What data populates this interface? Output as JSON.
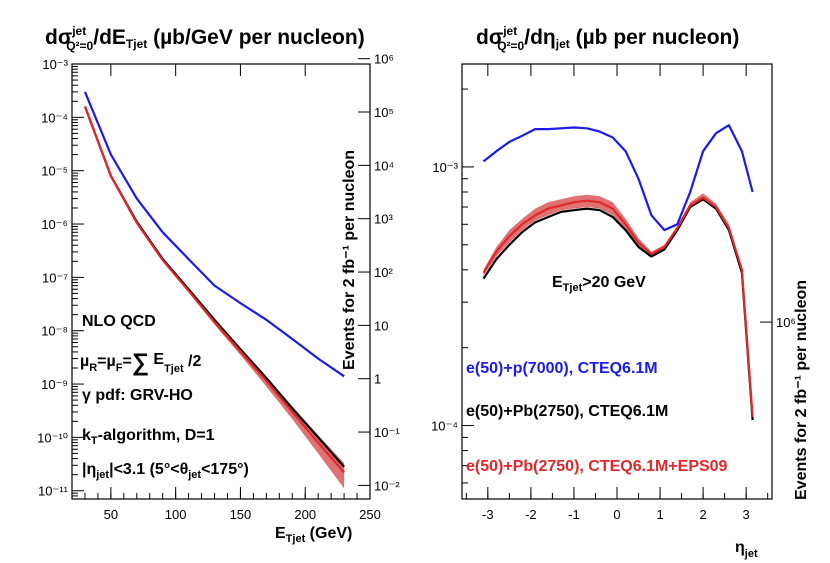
{
  "colors": {
    "blue": "#1a1aee",
    "black": "#000000",
    "red": "#e0282a",
    "band": "#d9585a"
  },
  "chart_data": [
    {
      "type": "line",
      "title_main": "dσ",
      "title_sup": "jet",
      "title_sub": "Q²=0",
      "title_mid": "/dE",
      "title_sub2": "Tjet",
      "title_tail": " (µb/GeV per nucleon)",
      "xlabel_main": "E",
      "xlabel_sub": "Tjet",
      "xlabel_tail": " (GeV)",
      "right_axis_label": "Events for 2 fb⁻¹ per nucleon",
      "xlim": [
        20,
        250
      ],
      "ylim": [
        7e-12,
        0.001
      ],
      "y_scale": "log",
      "x_ticks": [
        "50",
        "100",
        "150",
        "200",
        "250"
      ],
      "y_ticks": [
        "10⁻¹¹",
        "10⁻¹⁰",
        "10⁻⁹",
        "10⁻⁸",
        "10⁻⁷",
        "10⁻⁶",
        "10⁻⁵",
        "10⁻⁴",
        "10⁻³"
      ],
      "y2_ticks": [
        "10⁻²",
        "10⁻¹",
        "1",
        "10",
        "10²",
        "10³",
        "10⁴",
        "10⁵",
        "10⁶"
      ],
      "annotations": {
        "nlo": "NLO QCD",
        "mu": "µ",
        "mu_r": "R",
        "eq1": "=µ",
        "mu_f": "F",
        "eq2": "=",
        "sum": "∑",
        "e": " E",
        "e_sub": "Tjet",
        "div": " /2",
        "pdf": "γ pdf: GRV-HO",
        "kt_k": "k",
        "kt_sub": "T",
        "kt_rest": "-algorithm, D=1",
        "eta_a": "|η",
        "eta_sub": "jet",
        "eta_b": "|<3.1 (5°<θ",
        "theta_sub": "jet",
        "eta_c": "<175°)"
      },
      "series": [
        {
          "name": "e(50)+p(7000), CTEQ6.1M",
          "color": "blue",
          "x": [
            30,
            50,
            70,
            90,
            110,
            130,
            150,
            170,
            190,
            210,
            230
          ],
          "y": [
            0.0003,
            2e-05,
            3e-06,
            7e-07,
            2.2e-07,
            7e-08,
            3.3e-08,
            1.6e-08,
            7e-09,
            3e-09,
            1.4e-09
          ]
        },
        {
          "name": "e(50)+Pb(2750), CTEQ6.1M",
          "color": "black",
          "x": [
            30,
            50,
            70,
            90,
            110,
            130,
            150,
            170,
            190,
            210,
            230
          ],
          "y": [
            0.00016,
            8e-06,
            1.1e-06,
            2.2e-07,
            6e-08,
            1.6e-08,
            4.5e-09,
            1.3e-09,
            3.5e-10,
            1e-10,
            2.8e-11
          ]
        },
        {
          "name": "e(50)+Pb(2750), CTEQ6.1M+EPS09",
          "color": "red",
          "band": true,
          "x": [
            30,
            50,
            70,
            90,
            110,
            130,
            150,
            170,
            190,
            210,
            230
          ],
          "y": [
            0.00016,
            7.9e-06,
            1.05e-06,
            2.1e-07,
            5.6e-08,
            1.45e-08,
            4.1e-09,
            1.15e-09,
            3e-10,
            8e-11,
            2.2e-11
          ],
          "y_low": [
            0.000155,
            7.5e-06,
            1e-06,
            2e-07,
            5.2e-08,
            1.3e-08,
            3.5e-09,
            9e-10,
            2.2e-10,
            5e-11,
            1.1e-11
          ],
          "y_high": [
            0.000165,
            8.2e-06,
            1.12e-06,
            2.25e-07,
            6.2e-08,
            1.65e-08,
            4.8e-09,
            1.4e-09,
            3.8e-10,
            1.1e-10,
            3.3e-11
          ]
        }
      ]
    },
    {
      "type": "line",
      "title_main": "dσ",
      "title_sup": "jet",
      "title_sub": "Q²=0",
      "title_mid": "/dη",
      "title_sub2": "jet",
      "title_tail": " (µb per nucleon)",
      "xlabel_main": "η",
      "xlabel_sub": "jet",
      "right_axis_label": "Events for 2 fb⁻¹ per nucleon",
      "xlim": [
        -3.6,
        3.6
      ],
      "ylim": [
        5.2e-05,
        0.0025
      ],
      "y_scale": "log",
      "x_ticks": [
        "-3",
        "-2",
        "-1",
        "0",
        "1",
        "2",
        "3"
      ],
      "y_ticks": [
        "10⁻⁴",
        "10⁻³"
      ],
      "y2_ticks": [
        "10⁶"
      ],
      "cut_label_main": "E",
      "cut_label_sub": "Tjet",
      "cut_label_tail": ">20 GeV",
      "series": [
        {
          "name": "e(50)+p(7000), CTEQ6.1M",
          "color": "blue",
          "x": [
            -3.1,
            -2.8,
            -2.5,
            -2.2,
            -1.9,
            -1.6,
            -1.3,
            -1.0,
            -0.7,
            -0.4,
            -0.1,
            0.2,
            0.5,
            0.8,
            1.1,
            1.4,
            1.7,
            2.0,
            2.3,
            2.6,
            2.9,
            3.15
          ],
          "y": [
            0.00105,
            0.00115,
            0.00125,
            0.00132,
            0.0014,
            0.0014,
            0.00141,
            0.00142,
            0.00141,
            0.00137,
            0.0013,
            0.00115,
            0.0009,
            0.00065,
            0.00057,
            0.0006,
            0.0008,
            0.00115,
            0.00135,
            0.00145,
            0.00115,
            0.0008
          ]
        },
        {
          "name": "e(50)+Pb(2750), CTEQ6.1M",
          "color": "black",
          "x": [
            -3.1,
            -2.8,
            -2.5,
            -2.2,
            -1.9,
            -1.6,
            -1.3,
            -1.0,
            -0.7,
            -0.4,
            -0.1,
            0.2,
            0.5,
            0.8,
            1.1,
            1.4,
            1.7,
            2.0,
            2.3,
            2.6,
            2.9,
            3.15
          ],
          "y": [
            0.00037,
            0.00044,
            0.0005,
            0.00056,
            0.00061,
            0.00064,
            0.00067,
            0.00068,
            0.00069,
            0.00068,
            0.00064,
            0.00057,
            0.00049,
            0.00045,
            0.00048,
            0.00057,
            0.0007,
            0.00075,
            0.00069,
            0.00057,
            0.00039,
            0.000105
          ]
        },
        {
          "name": "e(50)+Pb(2750), CTEQ6.1M+EPS09",
          "color": "red",
          "band": true,
          "x": [
            -3.1,
            -2.8,
            -2.5,
            -2.2,
            -1.9,
            -1.6,
            -1.3,
            -1.0,
            -0.7,
            -0.4,
            -0.1,
            0.2,
            0.5,
            0.8,
            1.1,
            1.4,
            1.7,
            2.0,
            2.3,
            2.6,
            2.9,
            3.15
          ],
          "y": [
            0.00039,
            0.00047,
            0.00054,
            0.0006,
            0.00065,
            0.00069,
            0.00071,
            0.00073,
            0.00074,
            0.00073,
            0.00069,
            0.0006,
            0.00051,
            0.00046,
            0.00049,
            0.00058,
            0.00071,
            0.00076,
            0.0007,
            0.00058,
            0.0004,
            0.000108
          ],
          "y_low": [
            0.00038,
            0.00045,
            0.00051,
            0.00057,
            0.00062,
            0.00065,
            0.00068,
            0.00069,
            0.0007,
            0.00069,
            0.00065,
            0.000575,
            0.000495,
            0.000455,
            0.000485,
            0.000575,
            0.0007,
            0.00074,
            0.00069,
            0.00057,
            0.00039,
            0.000105
          ],
          "y_high": [
            0.0004,
            0.00049,
            0.00057,
            0.00063,
            0.00069,
            0.00073,
            0.00075,
            0.00077,
            0.00078,
            0.00077,
            0.00073,
            0.00063,
            0.00053,
            0.00047,
            0.0005,
            0.00059,
            0.00073,
            0.00079,
            0.00072,
            0.0006,
            0.00041,
            0.00011
          ]
        }
      ],
      "legend": [
        {
          "label": "e(50)+p(7000), CTEQ6.1M",
          "color": "blue"
        },
        {
          "label": "e(50)+Pb(2750), CTEQ6.1M",
          "color": "black"
        },
        {
          "label": "e(50)+Pb(2750), CTEQ6.1M+EPS09",
          "color": "red"
        }
      ]
    }
  ]
}
